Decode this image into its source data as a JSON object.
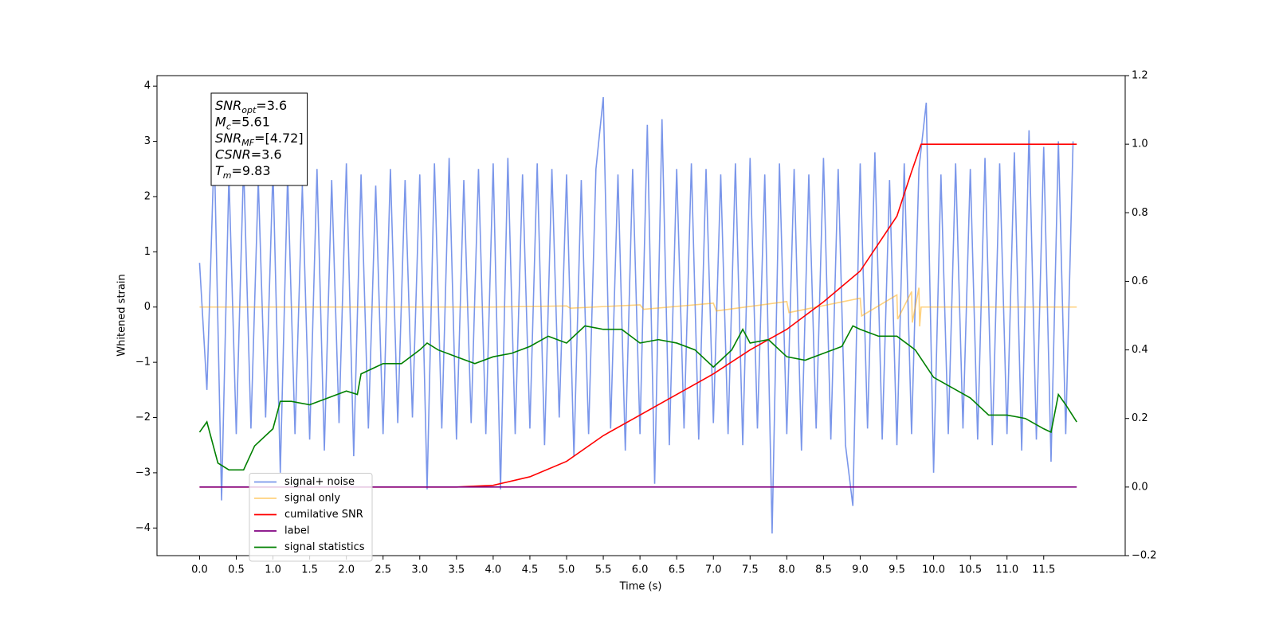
{
  "chart_data": {
    "type": "line",
    "xlabel": "Time (s)",
    "ylabel": "Whitened strain",
    "xlim": [
      -0.58,
      12.61
    ],
    "ylim": [
      -4.5,
      4.19
    ],
    "y2lim": [
      -0.2,
      1.2
    ],
    "xticks": [
      {
        "value": 0,
        "label": "0.0"
      },
      {
        "value": 0.5,
        "label": "0.5"
      },
      {
        "value": 1,
        "label": "1.0"
      },
      {
        "value": 1.5,
        "label": "1.5"
      },
      {
        "value": 2,
        "label": "2.0"
      },
      {
        "value": 2.5,
        "label": "2.5"
      },
      {
        "value": 3,
        "label": "3.0"
      },
      {
        "value": 3.5,
        "label": "3.5"
      },
      {
        "value": 4,
        "label": "4.0"
      },
      {
        "value": 4.5,
        "label": "4.5"
      },
      {
        "value": 5,
        "label": "5.0"
      },
      {
        "value": 5.5,
        "label": "5.5"
      },
      {
        "value": 6,
        "label": "6.0"
      },
      {
        "value": 6.5,
        "label": "6.5"
      },
      {
        "value": 7,
        "label": "7.0"
      },
      {
        "value": 7.5,
        "label": "7.5"
      },
      {
        "value": 8,
        "label": "8.0"
      },
      {
        "value": 8.5,
        "label": "8.5"
      },
      {
        "value": 9,
        "label": "9.0"
      },
      {
        "value": 9.5,
        "label": "9.5"
      },
      {
        "value": 10,
        "label": "10.0"
      },
      {
        "value": 10.5,
        "label": "10.5"
      },
      {
        "value": 11,
        "label": "11.0"
      },
      {
        "value": 11.5,
        "label": "11.5"
      }
    ],
    "yticks": [
      {
        "value": -4,
        "label": "−4"
      },
      {
        "value": -3,
        "label": "−3"
      },
      {
        "value": -2,
        "label": "−2"
      },
      {
        "value": -1,
        "label": "−1"
      },
      0,
      1,
      2,
      3,
      4
    ],
    "y2ticks": [
      {
        "value": -0.2,
        "label": "−0.2"
      },
      {
        "value": 0,
        "label": "0.0"
      },
      0.2,
      0.4,
      0.6,
      0.8,
      {
        "value": 1,
        "label": "1.0"
      },
      1.2
    ],
    "legend": "lower left",
    "annotations": [
      {
        "symbol": "SNR",
        "subscript": "opt",
        "text": "=3.6"
      },
      {
        "symbol": "M",
        "subscript": "c",
        "text": "=5.61"
      },
      {
        "symbol": "SNR",
        "subscript": "MF",
        "text": "=[4.72]"
      },
      {
        "symbol": "CSNR",
        "text": "=3.6"
      },
      {
        "symbol": "T",
        "subscript": "m",
        "text": "=9.83"
      }
    ],
    "series": [
      {
        "name": "signal+ noise",
        "color": "#4169e1",
        "alpha": 0.7,
        "x": [
          0.0,
          0.1,
          0.2,
          0.3,
          0.4,
          0.5,
          0.6,
          0.7,
          0.8,
          0.9,
          1.0,
          1.1,
          1.2,
          1.3,
          1.4,
          1.5,
          1.6,
          1.7,
          1.8,
          1.9,
          2.0,
          2.1,
          2.2,
          2.3,
          2.4,
          2.5,
          2.6,
          2.7,
          2.8,
          2.9,
          3.0,
          3.1,
          3.2,
          3.3,
          3.4,
          3.5,
          3.6,
          3.7,
          3.8,
          3.9,
          4.0,
          4.1,
          4.2,
          4.3,
          4.4,
          4.5,
          4.6,
          4.7,
          4.8,
          4.9,
          5.0,
          5.1,
          5.2,
          5.3,
          5.4,
          5.5,
          5.6,
          5.7,
          5.8,
          5.9,
          6.0,
          6.1,
          6.2,
          6.3,
          6.4,
          6.5,
          6.6,
          6.7,
          6.8,
          6.9,
          7.0,
          7.1,
          7.2,
          7.3,
          7.4,
          7.5,
          7.6,
          7.7,
          7.8,
          7.9,
          8.0,
          8.1,
          8.2,
          8.3,
          8.4,
          8.5,
          8.6,
          8.7,
          8.8,
          8.9,
          9.0,
          9.1,
          9.2,
          9.3,
          9.4,
          9.5,
          9.6,
          9.7,
          9.8,
          9.9,
          10.0,
          10.1,
          10.2,
          10.3,
          10.4,
          10.5,
          10.6,
          10.7,
          10.8,
          10.9,
          11.0,
          11.1,
          11.2,
          11.3,
          11.4,
          11.5,
          11.6,
          11.7,
          11.8,
          11.9
        ],
        "values": [
          0.8,
          -1.5,
          2.9,
          -3.5,
          2.4,
          -2.3,
          2.6,
          -2.2,
          2.3,
          -2.0,
          2.5,
          -3.0,
          2.4,
          -2.3,
          2.2,
          -2.4,
          2.5,
          -2.6,
          2.3,
          -2.1,
          2.6,
          -2.7,
          2.4,
          -2.2,
          2.2,
          -2.3,
          2.5,
          -2.1,
          2.3,
          -2.0,
          2.4,
          -3.3,
          2.6,
          -2.2,
          2.7,
          -2.4,
          2.3,
          -2.1,
          2.5,
          -2.3,
          2.6,
          -3.3,
          2.7,
          -2.3,
          2.4,
          -2.2,
          2.6,
          -2.5,
          2.5,
          -2.0,
          2.4,
          -2.7,
          2.3,
          -2.3,
          2.5,
          3.8,
          -2.2,
          2.4,
          -2.6,
          2.5,
          -2.3,
          3.3,
          -3.2,
          3.4,
          -2.5,
          2.5,
          -2.2,
          2.6,
          -2.4,
          2.5,
          -2.1,
          2.4,
          -2.3,
          2.6,
          -2.5,
          2.7,
          -2.2,
          2.4,
          -4.1,
          2.6,
          -2.3,
          2.5,
          -2.6,
          2.4,
          -2.2,
          2.7,
          -2.4,
          2.5,
          -2.5,
          -3.6,
          2.6,
          -2.2,
          2.8,
          -2.4,
          2.3,
          -2.5,
          2.6,
          -2.3,
          2.5,
          3.7,
          -3.0,
          2.4,
          -2.3,
          2.6,
          -2.2,
          2.5,
          -2.4,
          2.7,
          -2.5,
          2.6,
          -2.3,
          2.8,
          -2.6,
          3.2,
          -2.4,
          2.9,
          -2.8,
          3.0,
          -2.3,
          3.0
        ]
      },
      {
        "name": "signal only",
        "color": "#ffa500",
        "alpha": 0.5,
        "x": [
          0,
          4.0,
          5.0,
          5.05,
          6.0,
          6.05,
          7.0,
          7.04,
          8.0,
          8.03,
          9.0,
          9.02,
          9.5,
          9.51,
          9.7,
          9.71,
          9.8,
          9.81,
          9.83,
          11.95
        ],
        "values": [
          0,
          0,
          0.02,
          -0.02,
          0.04,
          -0.04,
          0.07,
          -0.07,
          0.1,
          -0.1,
          0.16,
          -0.16,
          0.22,
          -0.22,
          0.28,
          -0.28,
          0.35,
          -0.35,
          0,
          0
        ]
      },
      {
        "name": "cumilative SNR",
        "color": "#ff0000",
        "alpha": 1,
        "axis": "y2",
        "x": [
          0,
          3.5,
          4.0,
          4.5,
          5.0,
          5.5,
          6.0,
          6.5,
          7.0,
          7.5,
          8.0,
          8.5,
          9.0,
          9.5,
          9.7,
          9.83,
          11.95
        ],
        "values": [
          0,
          0,
          0.005,
          0.03,
          0.075,
          0.15,
          0.21,
          0.27,
          0.33,
          0.4,
          0.46,
          0.54,
          0.63,
          0.79,
          0.92,
          1.0,
          1.0
        ]
      },
      {
        "name": "label",
        "color": "#800080",
        "alpha": 1,
        "axis": "y2",
        "x": [
          0,
          11.95
        ],
        "values": [
          0,
          0
        ]
      },
      {
        "name": "signal statistics",
        "color": "#008000",
        "alpha": 1,
        "axis": "y2",
        "x": [
          0,
          0.1,
          0.25,
          0.4,
          0.6,
          0.75,
          1.0,
          1.1,
          1.25,
          1.5,
          1.75,
          2.0,
          2.15,
          2.2,
          2.4,
          2.5,
          2.75,
          3.0,
          3.1,
          3.25,
          3.5,
          3.75,
          4.0,
          4.25,
          4.5,
          4.75,
          5.0,
          5.25,
          5.5,
          5.75,
          6.0,
          6.25,
          6.5,
          6.75,
          7.0,
          7.25,
          7.4,
          7.5,
          7.75,
          8.0,
          8.25,
          8.5,
          8.75,
          8.9,
          9.0,
          9.25,
          9.5,
          9.75,
          10.0,
          10.25,
          10.5,
          10.75,
          11.0,
          11.25,
          11.5,
          11.6,
          11.7,
          11.8,
          11.95
        ],
        "values": [
          0.16,
          0.19,
          0.07,
          0.05,
          0.05,
          0.12,
          0.17,
          0.25,
          0.25,
          0.24,
          0.26,
          0.28,
          0.27,
          0.33,
          0.35,
          0.36,
          0.36,
          0.4,
          0.42,
          0.4,
          0.38,
          0.36,
          0.38,
          0.39,
          0.41,
          0.44,
          0.42,
          0.47,
          0.46,
          0.46,
          0.42,
          0.43,
          0.42,
          0.4,
          0.35,
          0.4,
          0.46,
          0.42,
          0.43,
          0.38,
          0.37,
          0.39,
          0.41,
          0.47,
          0.46,
          0.44,
          0.44,
          0.4,
          0.32,
          0.29,
          0.26,
          0.21,
          0.21,
          0.2,
          0.17,
          0.16,
          0.27,
          0.24,
          0.19
        ]
      }
    ]
  }
}
